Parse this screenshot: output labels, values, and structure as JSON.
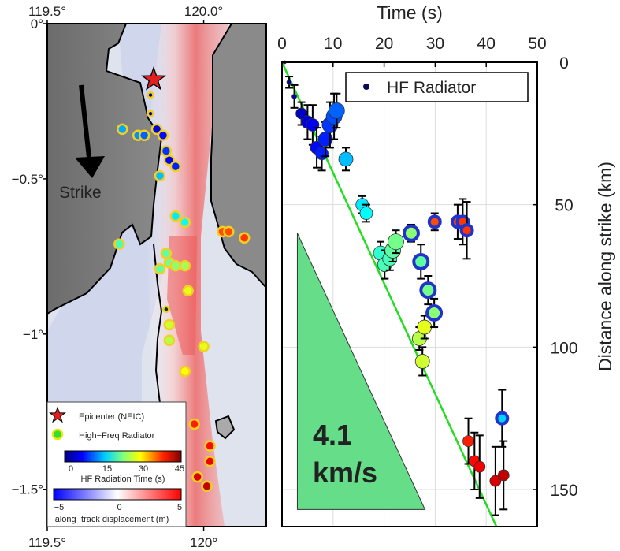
{
  "chart_data": [
    {
      "type": "map",
      "lon_ticks": [
        "119.5°",
        "120.0°"
      ],
      "lon_ticks_bottom": [
        "119.5°",
        "120°"
      ],
      "lat_ticks": [
        "0°",
        "−0.5°",
        "−1°",
        "−1.5°"
      ],
      "lon_range": [
        119.5,
        120.2
      ],
      "lat_range": [
        -1.62,
        0.0
      ],
      "strike_label": "Strike",
      "legend": {
        "epicenter": "Epicenter (NEIC)",
        "radiator": "High−Freq Radiator"
      },
      "colorbar_time": {
        "label": "HF Radiation Time (s)",
        "ticks": [
          "0",
          "15",
          "30",
          "45"
        ],
        "range": [
          0,
          45
        ]
      },
      "colorbar_disp": {
        "label": "along−track displacement (m)",
        "ticks": [
          "−5",
          "0",
          "5"
        ],
        "range": [
          -5,
          5
        ]
      },
      "epicenter": {
        "lon": 119.84,
        "lat": -0.18
      },
      "radiators": [
        {
          "lon": 119.83,
          "lat": -0.23,
          "t": 2
        },
        {
          "lon": 119.83,
          "lat": -0.29,
          "t": 3
        },
        {
          "lon": 119.74,
          "lat": -0.34,
          "t": 13
        },
        {
          "lon": 119.79,
          "lat": -0.36,
          "t": 12
        },
        {
          "lon": 119.81,
          "lat": -0.36,
          "t": 10
        },
        {
          "lon": 119.85,
          "lat": -0.34,
          "t": 4
        },
        {
          "lon": 119.87,
          "lat": -0.36,
          "t": 6
        },
        {
          "lon": 119.88,
          "lat": -0.41,
          "t": 8
        },
        {
          "lon": 119.89,
          "lat": -0.44,
          "t": 5
        },
        {
          "lon": 119.91,
          "lat": -0.46,
          "t": 7
        },
        {
          "lon": 119.86,
          "lat": -0.49,
          "t": 14
        },
        {
          "lon": 119.91,
          "lat": -0.62,
          "t": 16
        },
        {
          "lon": 119.94,
          "lat": -0.64,
          "t": 17
        },
        {
          "lon": 120.06,
          "lat": -0.67,
          "t": 36
        },
        {
          "lon": 120.08,
          "lat": -0.67,
          "t": 36
        },
        {
          "lon": 120.13,
          "lat": -0.69,
          "t": 37
        },
        {
          "lon": 119.73,
          "lat": -0.71,
          "t": 20
        },
        {
          "lon": 119.88,
          "lat": -0.74,
          "t": 21
        },
        {
          "lon": 119.89,
          "lat": -0.77,
          "t": 22
        },
        {
          "lon": 119.91,
          "lat": -0.78,
          "t": 23
        },
        {
          "lon": 119.94,
          "lat": -0.78,
          "t": 24
        },
        {
          "lon": 119.86,
          "lat": -0.79,
          "t": 21
        },
        {
          "lon": 119.95,
          "lat": -0.86,
          "t": 27
        },
        {
          "lon": 119.88,
          "lat": -0.92,
          "t": 0
        },
        {
          "lon": 119.89,
          "lat": -0.97,
          "t": 26
        },
        {
          "lon": 119.89,
          "lat": -1.02,
          "t": 25
        },
        {
          "lon": 120.0,
          "lat": -1.04,
          "t": 27
        },
        {
          "lon": 119.94,
          "lat": -1.12,
          "t": 28
        },
        {
          "lon": 119.97,
          "lat": -1.29,
          "t": 38
        },
        {
          "lon": 120.02,
          "lat": -1.36,
          "t": 39
        },
        {
          "lon": 120.02,
          "lat": -1.41,
          "t": 40
        },
        {
          "lon": 119.98,
          "lat": -1.46,
          "t": 41
        },
        {
          "lon": 120.01,
          "lat": -1.49,
          "t": 42
        }
      ]
    },
    {
      "type": "scatter",
      "xlabel": "Time (s)",
      "ylabel": "Distance along strike (km)",
      "xlim": [
        0,
        50
      ],
      "ylim": [
        0,
        163
      ],
      "x_ticks": [
        0,
        10,
        20,
        30,
        40,
        50
      ],
      "y_ticks": [
        0,
        50,
        100,
        150
      ],
      "y_inverted": true,
      "grid": true,
      "legend_label": "HF Radiator",
      "legend_position": "top-right",
      "rupture_line": {
        "x": [
          0,
          42
        ],
        "y": [
          0,
          163
        ]
      },
      "velocity_triangle": {
        "x": [
          3,
          3,
          28
        ],
        "y": [
          60,
          157,
          157
        ],
        "color": "#66dd88"
      },
      "velocity_label": [
        "4.1",
        "km/s"
      ],
      "points": [
        {
          "x": 0.5,
          "y": 0,
          "err": 0,
          "t": 0,
          "s": 2
        },
        {
          "x": 1.4,
          "y": 7,
          "err": 2,
          "t": 1,
          "s": 3
        },
        {
          "x": 2.4,
          "y": 12,
          "err": 4,
          "t": 2,
          "s": 3
        },
        {
          "x": 3.8,
          "y": 18,
          "err": 4,
          "t": 3,
          "s": 7
        },
        {
          "x": 5,
          "y": 21,
          "err": 6,
          "t": 4,
          "s": 8
        },
        {
          "x": 6,
          "y": 22,
          "err": 7,
          "t": 5,
          "s": 8
        },
        {
          "x": 6.8,
          "y": 30,
          "err": 7,
          "t": 6,
          "s": 8
        },
        {
          "x": 7.8,
          "y": 32,
          "err": 6,
          "t": 7,
          "s": 8
        },
        {
          "x": 8.5,
          "y": 27,
          "err": 6,
          "t": 7,
          "s": 9
        },
        {
          "x": 9.4,
          "y": 22,
          "err": 8,
          "t": 8,
          "s": 10
        },
        {
          "x": 10.2,
          "y": 19,
          "err": 8,
          "t": 9,
          "s": 10
        },
        {
          "x": 10.7,
          "y": 17,
          "err": 6,
          "t": 10,
          "s": 10
        },
        {
          "x": 12.5,
          "y": 34,
          "err": 4,
          "t": 14,
          "s": 9
        },
        {
          "x": 15.7,
          "y": 50,
          "err": 3,
          "t": 16,
          "s": 8
        },
        {
          "x": 16.5,
          "y": 53,
          "err": 3,
          "t": 17,
          "s": 8
        },
        {
          "x": 19.3,
          "y": 67,
          "err": 4,
          "t": 19,
          "s": 9
        },
        {
          "x": 20.1,
          "y": 71,
          "err": 5,
          "t": 20,
          "s": 9
        },
        {
          "x": 21.1,
          "y": 69,
          "err": 4,
          "t": 20,
          "s": 9
        },
        {
          "x": 21.7,
          "y": 66,
          "err": 4,
          "t": 21,
          "s": 10
        },
        {
          "x": 22.3,
          "y": 63,
          "err": 4,
          "t": 22,
          "s": 10
        },
        {
          "x": 25.3,
          "y": 60,
          "err": 3,
          "t": 23,
          "s": 9,
          "ring": "#2233cc"
        },
        {
          "x": 26.9,
          "y": 97,
          "err": 4,
          "t": 25,
          "s": 9
        },
        {
          "x": 27.5,
          "y": 105,
          "err": 5,
          "t": 26,
          "s": 9
        },
        {
          "x": 27.9,
          "y": 93,
          "err": 4,
          "t": 27,
          "s": 9
        },
        {
          "x": 27.2,
          "y": 70,
          "err": 6,
          "t": 21,
          "s": 9,
          "ring": "#2233cc"
        },
        {
          "x": 28.6,
          "y": 80,
          "err": 5,
          "t": 22,
          "s": 9,
          "ring": "#2233cc"
        },
        {
          "x": 29.8,
          "y": 88,
          "err": 5,
          "t": 23,
          "s": 9,
          "ring": "#2233cc"
        },
        {
          "x": 29.9,
          "y": 56,
          "err": 3,
          "t": 36,
          "s": 7,
          "ring": "#2233cc"
        },
        {
          "x": 34.4,
          "y": 56,
          "err": 6,
          "t": 36,
          "s": 7,
          "ring": "#2233cc"
        },
        {
          "x": 35.4,
          "y": 56,
          "err": 8,
          "t": 37,
          "s": 7,
          "ring": "#2233cc"
        },
        {
          "x": 36.2,
          "y": 59,
          "err": 10,
          "t": 37,
          "s": 7,
          "ring": "#2233cc"
        },
        {
          "x": 36.5,
          "y": 133,
          "err": 8,
          "t": 38,
          "s": 7
        },
        {
          "x": 37.7,
          "y": 140,
          "err": 10,
          "t": 39,
          "s": 7
        },
        {
          "x": 38.7,
          "y": 142,
          "err": 11,
          "t": 40,
          "s": 7
        },
        {
          "x": 41.8,
          "y": 147,
          "err": 12,
          "t": 41,
          "s": 7
        },
        {
          "x": 43.4,
          "y": 145,
          "err": 12,
          "t": 42,
          "s": 7
        },
        {
          "x": 43.1,
          "y": 125,
          "err": 10,
          "t": 15,
          "s": 7,
          "ring": "#2233cc"
        }
      ]
    }
  ]
}
